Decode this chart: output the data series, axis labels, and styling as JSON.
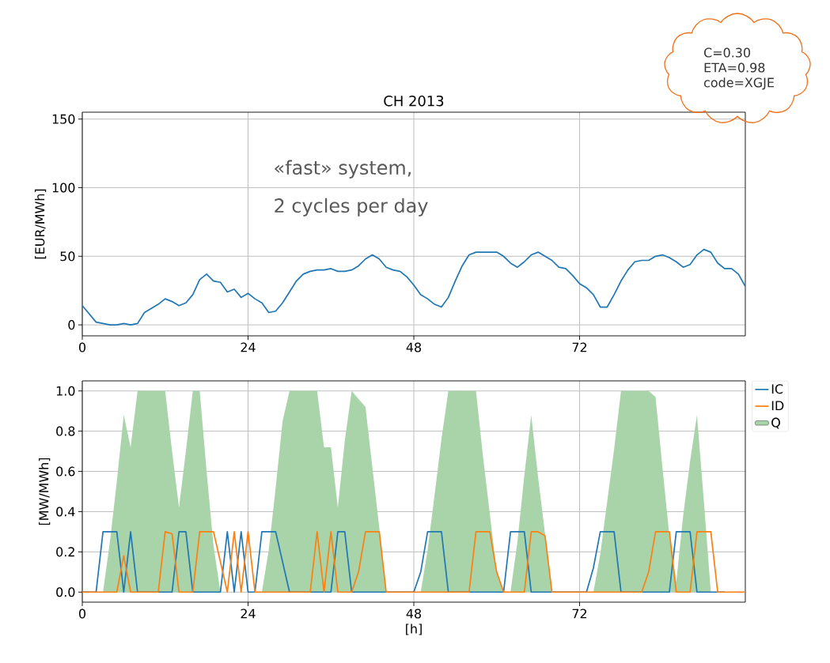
{
  "chart_data": [
    {
      "type": "line",
      "title": "CH 2013",
      "ylabel": "[EUR/MWh]",
      "annotations": [
        "«fast» system,",
        "2 cycles per day",
        "C=0.30",
        "ETA=0.98",
        "code=XGJE"
      ],
      "x": [
        0,
        1,
        2,
        3,
        4,
        5,
        6,
        7,
        8,
        9,
        10,
        11,
        12,
        13,
        14,
        15,
        16,
        17,
        18,
        19,
        20,
        21,
        22,
        23,
        24,
        25,
        26,
        27,
        28,
        29,
        30,
        31,
        32,
        33,
        34,
        35,
        36,
        37,
        38,
        39,
        40,
        41,
        42,
        43,
        44,
        45,
        46,
        47,
        48,
        49,
        50,
        51,
        52,
        53,
        54,
        55,
        56,
        57,
        58,
        59,
        60,
        61,
        62,
        63,
        64,
        65,
        66,
        67,
        68,
        69,
        70,
        71,
        72,
        73,
        74,
        75,
        76,
        77,
        78,
        79,
        80,
        81,
        82,
        83,
        84,
        85,
        86,
        87,
        88,
        89,
        90,
        91,
        92,
        93,
        94,
        95,
        96
      ],
      "values": [
        14,
        8,
        2,
        1,
        0,
        0,
        1,
        0,
        1,
        9,
        12,
        15,
        19,
        17,
        14,
        16,
        22,
        33,
        37,
        32,
        31,
        24,
        26,
        20,
        23,
        19,
        16,
        9,
        10,
        16,
        24,
        32,
        37,
        39,
        40,
        40,
        41,
        39,
        39,
        40,
        43,
        48,
        51,
        48,
        42,
        40,
        39,
        35,
        29,
        22,
        19,
        15,
        13,
        20,
        32,
        43,
        51,
        53,
        53,
        53,
        53,
        50,
        45,
        42,
        46,
        51,
        53,
        50,
        47,
        42,
        41,
        36,
        30,
        27,
        22,
        13,
        13,
        22,
        32,
        40,
        46,
        47,
        47,
        50,
        51,
        49,
        46,
        42,
        44,
        51,
        55,
        53,
        45,
        41,
        41,
        37,
        28
      ],
      "color": "#1f77b4",
      "xlim": [
        0,
        96
      ],
      "ylim": [
        -8,
        155
      ],
      "xticks": [
        0,
        24,
        48,
        72
      ],
      "yticks": [
        0,
        50,
        100,
        150
      ],
      "grid": true
    },
    {
      "type": "line",
      "xlabel": "[h]",
      "ylabel": "[MW/MWh]",
      "x": [
        0,
        1,
        2,
        3,
        4,
        5,
        6,
        7,
        8,
        9,
        10,
        11,
        12,
        13,
        14,
        15,
        16,
        17,
        18,
        19,
        20,
        21,
        22,
        23,
        24,
        25,
        26,
        27,
        28,
        29,
        30,
        31,
        32,
        33,
        34,
        35,
        36,
        37,
        38,
        39,
        40,
        41,
        42,
        43,
        44,
        45,
        46,
        47,
        48,
        49,
        50,
        51,
        52,
        53,
        54,
        55,
        56,
        57,
        58,
        59,
        60,
        61,
        62,
        63,
        64,
        65,
        66,
        67,
        68,
        69,
        70,
        71,
        72,
        73,
        74,
        75,
        76,
        77,
        78,
        79,
        80,
        81,
        82,
        83,
        84,
        85,
        86,
        87,
        88,
        89,
        90,
        91,
        92,
        93,
        94,
        95,
        96
      ],
      "series": [
        {
          "name": "IC",
          "color": "#1f77b4",
          "values": [
            0,
            0,
            0,
            0.3,
            0.3,
            0.3,
            0,
            0.3,
            0,
            0,
            0,
            0,
            0,
            0,
            0.3,
            0.3,
            0,
            0,
            0,
            0,
            0,
            0.3,
            0,
            0.3,
            0,
            0,
            0.3,
            0.3,
            0.3,
            0.15,
            0,
            0,
            0,
            0,
            0,
            0,
            0,
            0.3,
            0.3,
            0,
            0,
            0,
            0,
            0,
            0,
            0,
            0,
            0,
            0,
            0.1,
            0.3,
            0.3,
            0.3,
            0,
            0,
            0,
            0,
            0,
            0,
            0,
            0,
            0,
            0.3,
            0.3,
            0.3,
            0,
            0,
            0,
            0,
            0,
            0,
            0,
            0,
            0,
            0.12,
            0.3,
            0.3,
            0.3,
            0,
            0,
            0,
            0,
            0,
            0,
            0,
            0,
            0.3,
            0.3,
            0.3,
            0,
            0,
            0,
            0,
            0,
            null,
            null,
            null
          ]
        },
        {
          "name": "ID",
          "color": "#ff7f0e",
          "values": [
            0,
            0,
            0,
            0,
            0,
            0,
            0.18,
            0,
            0,
            0,
            0,
            0,
            0.3,
            0.29,
            0,
            0,
            0,
            0.3,
            0.3,
            0.3,
            0.15,
            0,
            0.3,
            0,
            0.3,
            0,
            0,
            0,
            0,
            0,
            0,
            0,
            0,
            0,
            0.3,
            0,
            0.3,
            0,
            0,
            0,
            0.1,
            0.3,
            0.3,
            0.3,
            0,
            0,
            0,
            0,
            0,
            0,
            0,
            0,
            0,
            0,
            0,
            0,
            0,
            0.3,
            0.3,
            0.3,
            0.1,
            0,
            0,
            0,
            0,
            0.3,
            0.3,
            0.28,
            0,
            0,
            0,
            0,
            0,
            0,
            0,
            0,
            0,
            0,
            0,
            0,
            0,
            0,
            0.1,
            0.3,
            0.3,
            0.3,
            0,
            0,
            0,
            0.3,
            0.3,
            0.3,
            0,
            0,
            0,
            0,
            0
          ]
        },
        {
          "name": "Q",
          "type": "area",
          "color": "#a9d4a9",
          "values": [
            0,
            0,
            0,
            0,
            0.25,
            0.55,
            0.88,
            0.72,
            1,
            1,
            1,
            1,
            1,
            0.7,
            0.42,
            0.7,
            1,
            1,
            0.6,
            0.23,
            0,
            0,
            0,
            0,
            0,
            0,
            0,
            0.21,
            0.52,
            0.85,
            1,
            1,
            1,
            1,
            1,
            0.72,
            0.72,
            0.42,
            0.75,
            1,
            0.96,
            0.92,
            0.62,
            0.32,
            0,
            0,
            0,
            0,
            0,
            0,
            0.21,
            0.48,
            0.76,
            1,
            1,
            1,
            1,
            1,
            0.68,
            0.39,
            0.1,
            0,
            0,
            0.25,
            0.58,
            0.88,
            0.57,
            0.29,
            0,
            0,
            0,
            0,
            0,
            0,
            0,
            0.19,
            0.45,
            0.71,
            1,
            1,
            1,
            1,
            1,
            0.97,
            0.62,
            0.28,
            0.05,
            0.38,
            0.65,
            0.88,
            0.45,
            0,
            0,
            0,
            0,
            0,
            0
          ]
        }
      ],
      "xlim": [
        0,
        96
      ],
      "ylim": [
        -0.05,
        1.05
      ],
      "xticks": [
        0,
        24,
        48,
        72
      ],
      "yticks": [
        {
          "value": 0,
          "label": "0.0"
        },
        {
          "value": 0.2,
          "label": "0.2"
        },
        {
          "value": 0.4,
          "label": "0.4"
        },
        {
          "value": 0.6,
          "label": "0.6"
        },
        {
          "value": 0.8,
          "label": "0.8"
        },
        {
          "value": 1,
          "label": "1.0"
        }
      ],
      "grid": true,
      "legend": "top right"
    }
  ]
}
